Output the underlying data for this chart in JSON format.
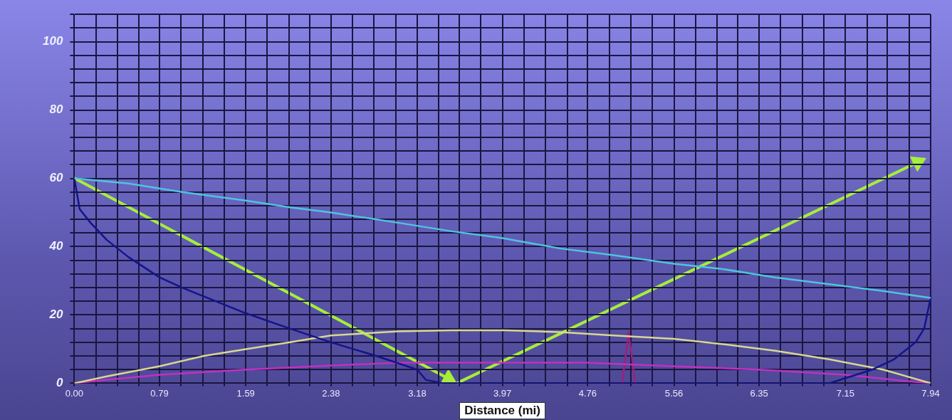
{
  "chart_data": {
    "type": "line",
    "xlabel": "Distance (mi)",
    "xlim": [
      0,
      7.94
    ],
    "ylim": [
      0,
      108
    ],
    "xticks": [
      {
        "value": 0,
        "label": "0.00"
      },
      {
        "value": 0.2,
        "label": null
      },
      {
        "value": 0.4,
        "label": null
      },
      {
        "value": 0.6,
        "label": null
      },
      {
        "value": 0.79,
        "label": "0.79"
      },
      {
        "value": 0.99,
        "label": null
      },
      {
        "value": 1.19,
        "label": null
      },
      {
        "value": 1.39,
        "label": null
      },
      1.59,
      {
        "value": 1.79,
        "label": null
      },
      {
        "value": 1.99,
        "label": null
      },
      {
        "value": 2.18,
        "label": null
      },
      2.38,
      {
        "value": 2.58,
        "label": null
      },
      {
        "value": 2.78,
        "label": null
      },
      {
        "value": 2.98,
        "label": null
      },
      3.18,
      {
        "value": 3.38,
        "label": null
      },
      {
        "value": 3.57,
        "label": null
      },
      {
        "value": 3.77,
        "label": null
      },
      3.97,
      {
        "value": 4.17,
        "label": null
      },
      {
        "value": 4.37,
        "label": null
      },
      {
        "value": 4.57,
        "label": null
      },
      4.76,
      {
        "value": 4.96,
        "label": null
      },
      {
        "value": 5.16,
        "label": null
      },
      {
        "value": 5.36,
        "label": null
      },
      5.56,
      {
        "value": 5.76,
        "label": null
      },
      {
        "value": 5.96,
        "label": null
      },
      {
        "value": 6.15,
        "label": null
      },
      6.35,
      {
        "value": 6.55,
        "label": null
      },
      {
        "value": 6.75,
        "label": null
      },
      {
        "value": 6.95,
        "label": null
      },
      7.15,
      {
        "value": 7.35,
        "label": null
      },
      {
        "value": 7.54,
        "label": null
      },
      {
        "value": 7.74,
        "label": null
      },
      7.94
    ],
    "yticks": [
      0,
      {
        "value": 4,
        "label": null
      },
      {
        "value": 8,
        "label": null
      },
      {
        "value": 12,
        "label": null
      },
      {
        "value": 16,
        "label": null
      },
      20,
      {
        "value": 24,
        "label": null
      },
      {
        "value": 28,
        "label": null
      },
      {
        "value": 32,
        "label": null
      },
      {
        "value": 36,
        "label": null
      },
      40,
      {
        "value": 44,
        "label": null
      },
      {
        "value": 48,
        "label": null
      },
      {
        "value": 52,
        "label": null
      },
      {
        "value": 56,
        "label": null
      },
      60,
      {
        "value": 64,
        "label": null
      },
      {
        "value": 68,
        "label": null
      },
      {
        "value": 72,
        "label": null
      },
      {
        "value": 76,
        "label": null
      },
      80,
      {
        "value": 84,
        "label": null
      },
      {
        "value": 88,
        "label": null
      },
      {
        "value": 92,
        "label": null
      },
      {
        "value": 96,
        "label": null
      },
      100,
      {
        "value": 104,
        "label": null
      },
      {
        "value": 108,
        "label": null
      }
    ],
    "grid": true,
    "legend": false,
    "marker": "none",
    "line_style": "solid",
    "series": [
      {
        "color": "#4fc3e0",
        "x": [
          0,
          0.5,
          1.0,
          1.59,
          2.0,
          2.38,
          3.0,
          3.5,
          3.97,
          4.5,
          5.0,
          5.56,
          6.0,
          6.5,
          7.0,
          7.5,
          7.94
        ],
        "values": [
          60,
          58.5,
          56,
          53.5,
          51.5,
          50,
          47,
          44.5,
          42.5,
          39.5,
          37.5,
          35,
          33.5,
          31,
          29,
          27,
          25
        ]
      },
      {
        "color": "#14148c",
        "x": [
          0,
          0.05,
          0.15,
          0.3,
          0.5,
          0.79,
          1.0,
          1.59,
          2.0,
          2.38,
          2.8,
          3.18,
          3.26,
          3.42,
          7.0,
          7.15,
          7.4,
          7.6,
          7.8,
          7.88,
          7.94
        ],
        "values": [
          60,
          51,
          47,
          42,
          37,
          31,
          28,
          20.5,
          16,
          12,
          8,
          4,
          1,
          0,
          0,
          1.5,
          4,
          7,
          12,
          16,
          25
        ]
      },
      {
        "color": "#d8d890",
        "x": [
          0,
          0.3,
          0.79,
          1.2,
          1.59,
          2.0,
          2.38,
          3.0,
          3.5,
          4.0,
          4.5,
          5.0,
          5.56,
          6.0,
          6.5,
          7.0,
          7.5,
          7.94
        ],
        "values": [
          0,
          2,
          5,
          8,
          10,
          12,
          14,
          15.2,
          15.5,
          15.5,
          15,
          14,
          13,
          11.5,
          9.5,
          7,
          4,
          0
        ]
      },
      {
        "color": "#c030c0",
        "x": [
          0,
          0.3,
          0.79,
          1.59,
          2.38,
          3.0,
          4.2,
          4.76,
          5.56,
          6.35,
          7.15,
          7.6,
          7.94
        ],
        "values": [
          0,
          1,
          2.5,
          4,
          5.2,
          6,
          6,
          6,
          5,
          4,
          2.5,
          1,
          0
        ]
      },
      {
        "color": "#a0207a",
        "x": [
          5.08,
          5.14,
          5.2
        ],
        "values": [
          0,
          15,
          0
        ]
      }
    ]
  }
}
